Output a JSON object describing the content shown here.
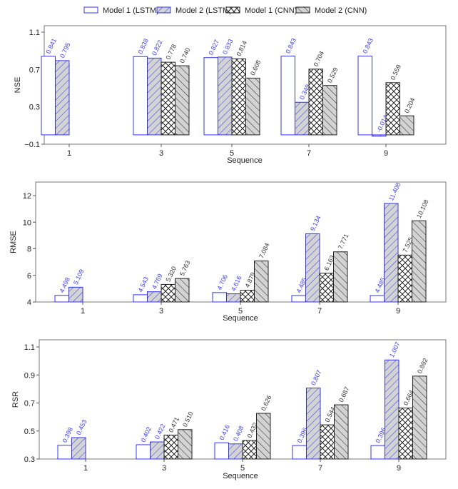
{
  "legend": [
    {
      "name": "Model 1 (LSTM)",
      "style": "open-blue"
    },
    {
      "name": "Model 2 (LSTM)",
      "style": "hatch-diag-blue"
    },
    {
      "name": "Model 1 (CNN)",
      "style": "crosshatch-black"
    },
    {
      "name": "Model 2 (CNN)",
      "style": "hatch-back-black"
    }
  ],
  "colors": {
    "blue": "#3434f0",
    "black": "#222222",
    "gray_fill": "#d3d3d3",
    "frame": "#777777"
  },
  "chart_data": [
    {
      "type": "bar",
      "title": "",
      "xlabel": "Sequence",
      "ylabel": "NSE",
      "categories": [
        "1",
        "3",
        "5",
        "7",
        "9"
      ],
      "ylim": [
        -0.1,
        1.1
      ],
      "yticks": [
        -0.1,
        0.3,
        0.7,
        1.1
      ],
      "ytick_labels": [
        "−0.1",
        "0.3",
        "0.7",
        "1.1"
      ],
      "baseline": 0,
      "grid": false,
      "series": [
        {
          "name": "Model 1 (LSTM)",
          "values": [
            0.841,
            0.838,
            0.827,
            0.843,
            0.843
          ],
          "labels": [
            "0.841",
            "0.838",
            "0.827",
            "0.843",
            "0.843"
          ]
        },
        {
          "name": "Model 2 (LSTM)",
          "values": [
            0.795,
            0.822,
            0.833,
            0.349,
            -0.014
          ],
          "labels": [
            "0.795",
            "0.822",
            "0.833",
            "0.349",
            "-0.014"
          ]
        },
        {
          "name": "Model 1 (CNN)",
          "values": [
            null,
            0.778,
            0.814,
            0.704,
            0.559
          ],
          "labels": [
            null,
            "0.778",
            "0.814",
            "0.704",
            "0.559"
          ]
        },
        {
          "name": "Model 2 (CNN)",
          "values": [
            null,
            0.74,
            0.608,
            0.529,
            0.204
          ],
          "labels": [
            null,
            "0.740",
            "0.608",
            "0.529",
            "0.204"
          ]
        }
      ]
    },
    {
      "type": "bar",
      "title": "",
      "xlabel": "Sequence",
      "ylabel": "RMSE",
      "categories": [
        "1",
        "3",
        "5",
        "7",
        "9"
      ],
      "ylim": [
        4,
        13
      ],
      "yticks": [
        4,
        6,
        8,
        10,
        12
      ],
      "ytick_labels": [
        "4",
        "6",
        "8",
        "10",
        "12"
      ],
      "baseline": 4,
      "grid": false,
      "series": [
        {
          "name": "Model 1 (LSTM)",
          "values": [
            4.498,
            4.543,
            4.706,
            4.485,
            4.485
          ],
          "labels": [
            "4.498",
            "4.543",
            "4.706",
            "4.485",
            "4.485"
          ]
        },
        {
          "name": "Model 2 (LSTM)",
          "values": [
            5.109,
            4.769,
            4.616,
            9.134,
            11.408
          ],
          "labels": [
            "5.109",
            "4.769",
            "4.616",
            "9.134",
            "11.408"
          ]
        },
        {
          "name": "Model 1 (CNN)",
          "values": [
            null,
            5.32,
            4.879,
            6.163,
            7.525
          ],
          "labels": [
            null,
            "5.320",
            "4.879",
            "6.163",
            "7.525"
          ]
        },
        {
          "name": "Model 2 (CNN)",
          "values": [
            null,
            5.763,
            7.084,
            7.771,
            10.108
          ],
          "labels": [
            null,
            "5.763",
            "7.084",
            "7.771",
            "10.108"
          ]
        }
      ]
    },
    {
      "type": "bar",
      "title": "",
      "xlabel": "Sequence",
      "ylabel": "RSR",
      "categories": [
        "1",
        "3",
        "5",
        "7",
        "9"
      ],
      "ylim": [
        0.3,
        1.15
      ],
      "yticks": [
        0.3,
        0.5,
        0.7,
        0.9,
        1.1
      ],
      "ytick_labels": [
        "0.3",
        "0.5",
        "0.7",
        "0.9",
        "1.1"
      ],
      "baseline": 0.3,
      "grid": false,
      "series": [
        {
          "name": "Model 1 (LSTM)",
          "values": [
            0.398,
            0.402,
            0.416,
            0.396,
            0.396
          ],
          "labels": [
            "0.398",
            "0.402",
            "0.416",
            "0.396",
            "0.396"
          ]
        },
        {
          "name": "Model 2 (LSTM)",
          "values": [
            0.453,
            0.422,
            0.408,
            0.807,
            1.007
          ],
          "labels": [
            "0.453",
            "0.422",
            "0.408",
            "0.807",
            "1.007"
          ]
        },
        {
          "name": "Model 1 (CNN)",
          "values": [
            null,
            0.471,
            0.432,
            0.544,
            0.664
          ],
          "labels": [
            null,
            "0.471",
            "0.432",
            "0.544",
            "0.664"
          ]
        },
        {
          "name": "Model 2 (CNN)",
          "values": [
            null,
            0.51,
            0.626,
            0.687,
            0.892
          ],
          "labels": [
            null,
            "0.510",
            "0.626",
            "0.687",
            "0.892"
          ]
        }
      ]
    }
  ]
}
